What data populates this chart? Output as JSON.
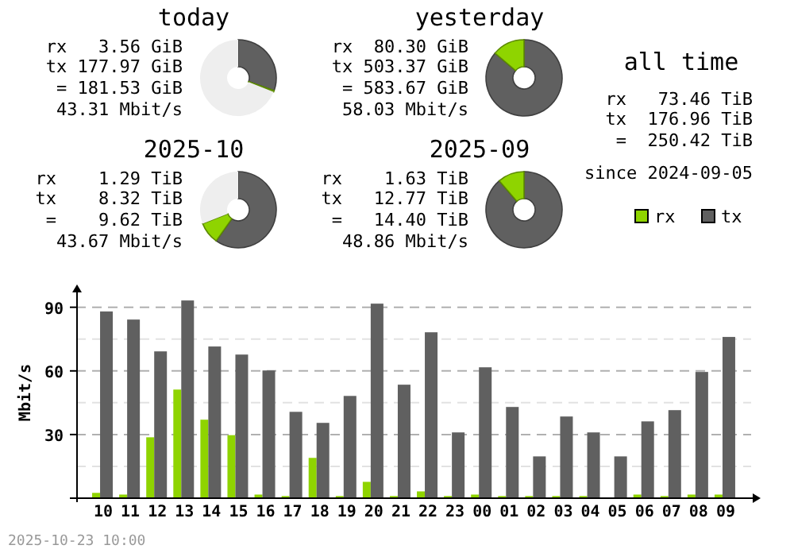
{
  "chart_data": [
    {
      "type": "donut",
      "title": "today",
      "categories": [
        null,
        null,
        null
      ],
      "values": [
        30.4,
        0.6,
        69
      ],
      "colors": [
        "#606060",
        "#8fd400",
        "#eeeeee"
      ],
      "annotations": [
        "rx   3.56 GiB",
        "tx 177.97 GiB",
        " = 181.53 GiB",
        "43.31 Mbit/s"
      ]
    },
    {
      "type": "donut",
      "title": "yesterday",
      "categories": [
        null,
        null
      ],
      "values": [
        86.2,
        13.8
      ],
      "colors": [
        "#606060",
        "#8fd400"
      ],
      "annotations": [
        "rx  80.30 GiB",
        "tx 503.37 GiB",
        " = 583.67 GiB",
        "58.03 Mbit/s"
      ]
    },
    {
      "type": "other",
      "title": "all time",
      "annotations": [
        "rx   73.46 TiB",
        "tx  176.96 TiB",
        "=  250.42 TiB",
        "since 2024-09-05"
      ]
    },
    {
      "type": "donut",
      "title": "2025-10",
      "categories": [
        null,
        null,
        null
      ],
      "values": [
        59.8,
        9.3,
        30.9
      ],
      "colors": [
        "#606060",
        "#8fd400",
        "#eeeeee"
      ],
      "annotations": [
        "rx    1.29 TiB",
        "tx    8.32 TiB",
        " =    9.62 TiB",
        "43.67 Mbit/s"
      ]
    },
    {
      "type": "donut",
      "title": "2025-09",
      "categories": [
        null,
        null
      ],
      "values": [
        88.7,
        11.3
      ],
      "colors": [
        "#606060",
        "#8fd400"
      ],
      "annotations": [
        "rx    1.63 TiB",
        "tx   12.77 TiB",
        " =   14.40 TiB",
        "48.86 Mbit/s"
      ]
    },
    {
      "type": "bar",
      "ylabel": "Mbit/s",
      "categories": [
        "10",
        "11",
        "12",
        "13",
        "14",
        "15",
        "16",
        "17",
        "18",
        "19",
        "20",
        "21",
        "22",
        "23",
        "00",
        "01",
        "02",
        "03",
        "04",
        "05",
        "06",
        "07",
        "08",
        "09"
      ],
      "series": [
        {
          "name": "rx",
          "color": "#8fd400",
          "values": [
            2.5,
            1.7,
            28.7,
            51.2,
            37,
            29.7,
            1.7,
            1,
            19,
            1,
            7.7,
            1,
            3.2,
            1,
            1.7,
            1,
            1,
            1,
            1,
            0,
            1.7,
            1,
            1.7,
            1.7
          ]
        },
        {
          "name": "tx",
          "color": "#606060",
          "values": [
            88,
            84.2,
            69.2,
            93.2,
            71.5,
            67.7,
            60.2,
            40.7,
            35.5,
            48.2,
            91.7,
            53.5,
            78.2,
            31,
            61.7,
            43,
            19.7,
            38.5,
            31,
            19.7,
            36.2,
            41.5,
            59.5,
            76
          ]
        }
      ],
      "ylim": [
        0,
        100
      ],
      "yticks": [
        {
          "value": 15,
          "label": null
        },
        30,
        {
          "value": 45,
          "label": null
        },
        60,
        {
          "value": 75,
          "label": null
        },
        90
      ],
      "grid": true,
      "legend": "top right",
      "annotations": [
        "2025-10-23 10:00"
      ]
    }
  ]
}
